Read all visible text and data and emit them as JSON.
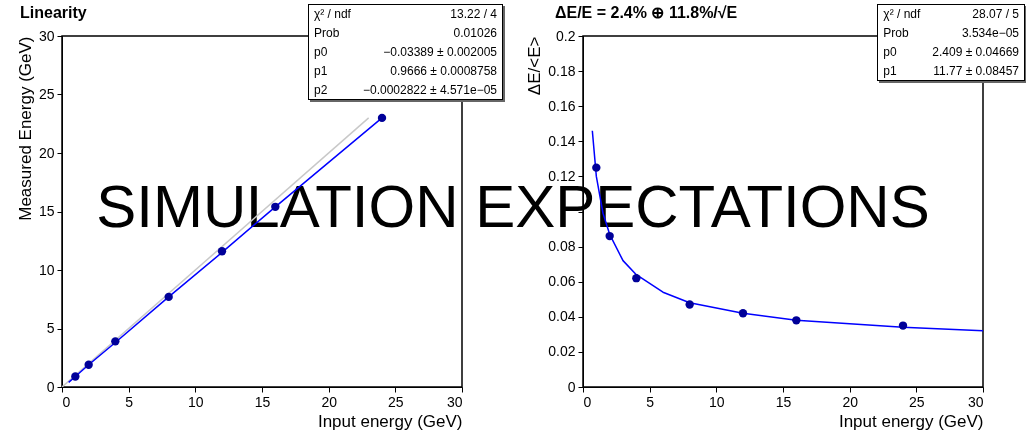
{
  "chart_data": [
    {
      "type": "scatter",
      "title": "Linearity",
      "xlabel": "Input energy (GeV)",
      "ylabel": "Measured Energy (GeV)",
      "xlim": [
        0,
        30
      ],
      "ylim": [
        0,
        30
      ],
      "xticks": [
        0,
        5,
        10,
        15,
        20,
        25,
        30
      ],
      "yticks": [
        0,
        5,
        10,
        15,
        20,
        25,
        30
      ],
      "series": [
        {
          "type": "line",
          "color": "#c8c8c8",
          "x": [
            0,
            23
          ],
          "values": [
            0,
            23
          ]
        },
        {
          "type": "line",
          "color": "#0000ff",
          "x": [
            0.5,
            1,
            2,
            4,
            8,
            12,
            16,
            20,
            24
          ],
          "values": [
            0.4,
            0.9,
            1.9,
            3.8,
            7.7,
            11.5,
            15.4,
            19.2,
            23.0
          ]
        },
        {
          "type": "scatter",
          "marker": "circle",
          "color": "#000099",
          "x": [
            1,
            2,
            4,
            8,
            12,
            16,
            24
          ],
          "values": [
            0.9,
            1.9,
            3.9,
            7.7,
            11.6,
            15.4,
            23.0
          ]
        }
      ],
      "annotations": [
        "χ² / ndf",
        "13.22 / 4",
        "Prob",
        "0.01026",
        "p0",
        "−0.03389 ± 0.002005",
        "p1",
        "0.9666 ± 0.0008758",
        "p2",
        "−0.0002822 ± 4.571e−05",
        "SIMULATION EXPECTATIONS"
      ]
    },
    {
      "type": "scatter",
      "title": "ΔE/E = 2.4%  ⊕ 11.8%/√E",
      "xlabel": "Input energy (GeV)",
      "ylabel": "ΔE/<E>",
      "xlim": [
        0,
        30
      ],
      "ylim": [
        0,
        0.2
      ],
      "xticks": [
        0,
        5,
        10,
        15,
        20,
        25,
        30
      ],
      "yticks": [
        0,
        0.02,
        0.04,
        0.06,
        0.08,
        {
          "value": 0.1,
          "label": null
        },
        0.12,
        0.14,
        0.16,
        0.18,
        0.2
      ],
      "series": [
        {
          "type": "line",
          "color": "#0000ff",
          "x": [
            0.7,
            1,
            1.5,
            2,
            3,
            4,
            6,
            8,
            12,
            16,
            20,
            24,
            30
          ],
          "values": [
            0.146,
            0.12,
            0.099,
            0.087,
            0.072,
            0.064,
            0.054,
            0.048,
            0.042,
            0.038,
            0.036,
            0.034,
            0.032
          ]
        },
        {
          "type": "scatter",
          "marker": "circle",
          "color": "#000099",
          "x": [
            1,
            2,
            4,
            8,
            12,
            16,
            24
          ],
          "values": [
            0.125,
            0.086,
            0.062,
            0.047,
            0.042,
            0.038,
            0.035
          ]
        }
      ],
      "annotations": [
        "χ² / ndf",
        "28.07 / 5",
        "Prob",
        "3.534e−05",
        "p0",
        "2.409 ± 0.04669",
        "p1",
        "11.77 ± 0.08457"
      ]
    }
  ]
}
